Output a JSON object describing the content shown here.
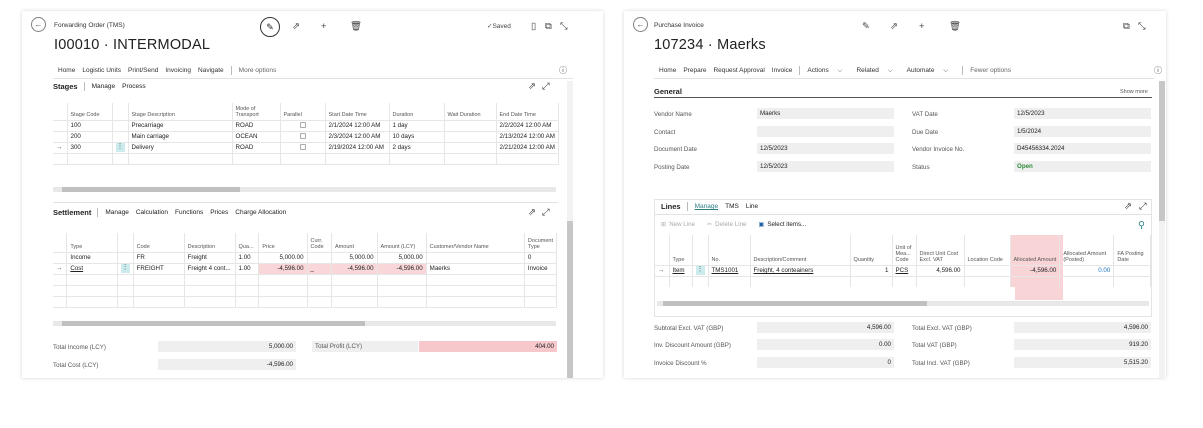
{
  "left": {
    "breadcrumb": "Forwarding Order (TMS)",
    "title": "I00010 · INTERMODAL",
    "saved": "✓Saved",
    "menu": [
      "Home",
      "Logistic Units",
      "Print/Send",
      "Invoicing",
      "Navigate"
    ],
    "more_options": "More options",
    "stages": {
      "title": "Stages",
      "tabs": [
        "Manage",
        "Process"
      ],
      "columns": [
        "Stage Code",
        "Stage Description",
        "Mode of Transport",
        "Parallel",
        "Start Date Time",
        "Duration",
        "Wait Duration",
        "End Date Time"
      ],
      "rows": [
        {
          "code": "100",
          "desc": "Precarriage",
          "mode": "ROAD",
          "start": "2/1/2024 12:00 AM",
          "duration": "1 day",
          "wait": "",
          "end": "2/2/2024 12:00 AM"
        },
        {
          "code": "200",
          "desc": "Main carriage",
          "mode": "OCEAN",
          "start": "2/3/2024 12:00 AM",
          "duration": "10 days",
          "wait": "",
          "end": "2/13/2024 12:00 AM"
        },
        {
          "code": "300",
          "desc": "Delivery",
          "mode": "ROAD",
          "start": "2/19/2024 12:00 AM",
          "duration": "2 days",
          "wait": "",
          "end": "2/21/2024 12:00 AM"
        }
      ]
    },
    "settlement": {
      "title": "Settlement",
      "tabs": [
        "Manage",
        "Calculation",
        "Functions",
        "Prices",
        "Charge Allocation"
      ],
      "columns": [
        "Type",
        "Code",
        "Description",
        "Qua...",
        "Price",
        "Curr. Code",
        "Amount",
        "Amount (LCY)",
        "Customer/Vendor Name",
        "Document Type"
      ],
      "rows": [
        {
          "type": "Income",
          "code": "FR",
          "desc": "Freight",
          "qty": "1.00",
          "price": "5,000.00",
          "curr": "",
          "amount": "5,000.00",
          "amount_lcy": "5,000.00",
          "name": "",
          "doc": "0"
        },
        {
          "type": "Cost",
          "code": "FREIGHT",
          "desc": "Freight 4 cont...",
          "qty": "1.00",
          "price": "-4,596.00",
          "curr": "_",
          "amount": "-4,596.00",
          "amount_lcy": "-4,596.00",
          "name": "Maerks",
          "doc": "Invoice"
        }
      ]
    },
    "totals": {
      "income_label": "Total Income (LCY)",
      "income": "5,000.00",
      "cost_label": "Total Cost (LCY)",
      "cost": "-4,596.00",
      "profit_label": "Total Profit (LCY)",
      "profit": "404.00"
    }
  },
  "right": {
    "breadcrumb": "Purchase Invoice",
    "title": "107234 · Maerks",
    "menu": [
      "Home",
      "Prepare",
      "Request Approval",
      "Invoice"
    ],
    "menu_dd": [
      "Actions",
      "Related",
      "Automate"
    ],
    "fewer_options": "Fewer options",
    "general": {
      "title": "General",
      "show_more": "Show more",
      "fields_left": [
        {
          "label": "Vendor Name",
          "value": "Maerks"
        },
        {
          "label": "Contact",
          "value": ""
        },
        {
          "label": "Document Date",
          "value": "12/5/2023"
        },
        {
          "label": "Posting Date",
          "value": "12/5/2023"
        }
      ],
      "fields_right": [
        {
          "label": "VAT Date",
          "value": "12/5/2023"
        },
        {
          "label": "Due Date",
          "value": "1/5/2024"
        },
        {
          "label": "Vendor Invoice No.",
          "value": "D45456334.2024"
        },
        {
          "label": "Status",
          "value": "Open"
        }
      ]
    },
    "lines": {
      "title": "Lines",
      "tabs": [
        "Manage",
        "TMS",
        "Line"
      ],
      "actions": [
        "New Line",
        "Delete Line",
        "Select items..."
      ],
      "columns": [
        "Type",
        "No.",
        "Description/Comment",
        "Quantity",
        "Unit of Mea... Code",
        "Direct Unit Cost Excl. VAT",
        "Location Code",
        "Allocated Amount",
        "Allocated Amount (Posted)",
        "FA Posting Date"
      ],
      "row": {
        "type": "Item",
        "no": "TMS1001",
        "desc": "Freight, 4 conteainers",
        "qty": "1",
        "uom": "PCS",
        "cost": "4,596.00",
        "loc": "",
        "alloc": "-4,596.00",
        "alloc_posted": "0.00",
        "fa": ""
      }
    },
    "totals_left": [
      {
        "label": "Subtotal Excl. VAT (GBP)",
        "value": "4,596.00"
      },
      {
        "label": "Inv. Discount Amount (GBP)",
        "value": "0.00"
      },
      {
        "label": "Invoice Discount %",
        "value": "0"
      }
    ],
    "totals_right": [
      {
        "label": "Total Excl. VAT (GBP)",
        "value": "4,596.00"
      },
      {
        "label": "Total VAT (GBP)",
        "value": "919.20"
      },
      {
        "label": "Total Incl. VAT (GBP)",
        "value": "5,515.20"
      }
    ]
  }
}
